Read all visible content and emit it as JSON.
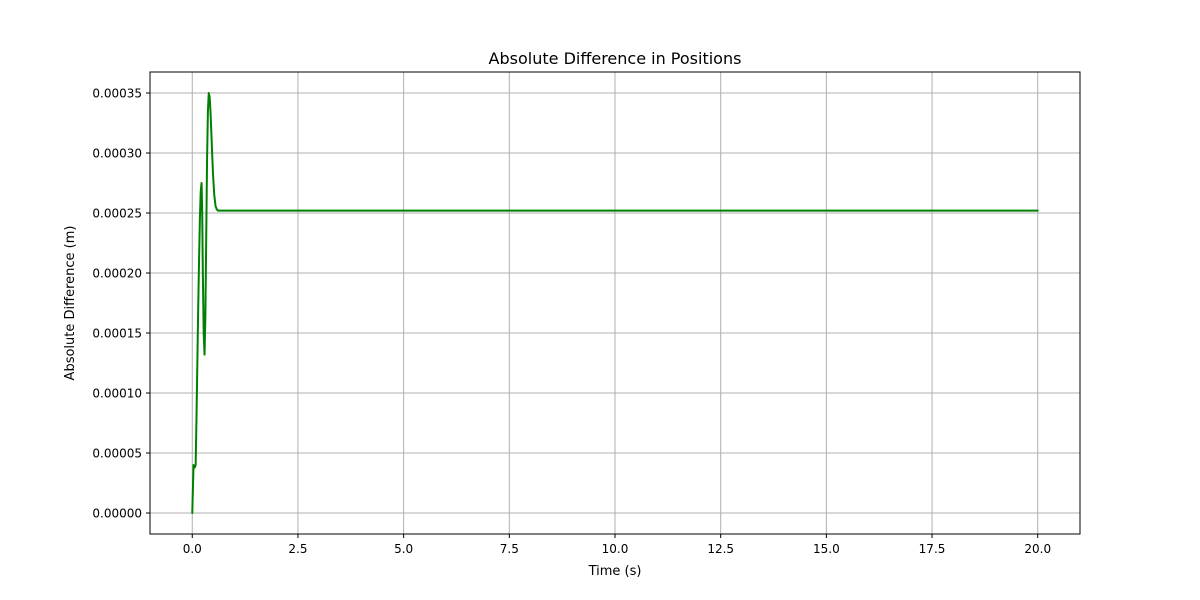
{
  "chart_data": {
    "type": "line",
    "title": "Absolute Difference in Positions",
    "xlabel": "Time (s)",
    "ylabel": "Absolute Difference (m)",
    "xlim": [
      -1.0,
      21.0
    ],
    "ylim": [
      -1.75e-05,
      0.0003675
    ],
    "grid": true,
    "x_ticks": [
      0.0,
      2.5,
      5.0,
      7.5,
      10.0,
      12.5,
      15.0,
      17.5,
      20.0
    ],
    "x_tick_labels": [
      "0.0",
      "2.5",
      "5.0",
      "7.5",
      "10.0",
      "12.5",
      "15.0",
      "17.5",
      "20.0"
    ],
    "y_ticks": [
      0.0,
      5e-05,
      0.0001,
      0.00015,
      0.0002,
      0.00025,
      0.0003,
      0.00035
    ],
    "y_tick_labels": [
      "0.00000",
      "0.00005",
      "0.00010",
      "0.00015",
      "0.00020",
      "0.00025",
      "0.00030",
      "0.00035"
    ],
    "series": [
      {
        "color": "#008000",
        "x": [
          0.0,
          0.03,
          0.06,
          0.08,
          0.1,
          0.12,
          0.14,
          0.16,
          0.18,
          0.2,
          0.22,
          0.235,
          0.25,
          0.27,
          0.29,
          0.31,
          0.33,
          0.35,
          0.37,
          0.39,
          0.41,
          0.43,
          0.45,
          0.47,
          0.49,
          0.52,
          0.55,
          0.58,
          0.61,
          0.65,
          0.7,
          0.8,
          1.0,
          2.0,
          5.0,
          10.0,
          15.0,
          20.0
        ],
        "y": [
          0.0,
          4e-05,
          3.8e-05,
          4e-05,
          8e-05,
          0.000125,
          0.00017,
          0.00021,
          0.000245,
          0.000268,
          0.000275,
          0.00025,
          0.0002,
          0.00015,
          0.000132,
          0.000165,
          0.00023,
          0.000295,
          0.000335,
          0.00035,
          0.000347,
          0.000335,
          0.000318,
          0.0003,
          0.000283,
          0.000265,
          0.000256,
          0.000253,
          0.000252,
          0.000252,
          0.000252,
          0.000252,
          0.000252,
          0.000252,
          0.000252,
          0.000252,
          0.000252,
          0.000252
        ]
      }
    ]
  }
}
